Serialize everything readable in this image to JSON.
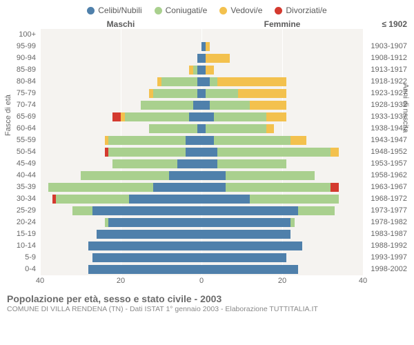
{
  "legend": [
    {
      "label": "Celibi/Nubili",
      "color": "#4f80ab"
    },
    {
      "label": "Coniugati/e",
      "color": "#a9d08e"
    },
    {
      "label": "Vedovi/e",
      "color": "#f3c14e"
    },
    {
      "label": "Divorziati/e",
      "color": "#d43a2f"
    }
  ],
  "header_male": "Maschi",
  "header_female": "Femmine",
  "header_right_top": "≤ 1902",
  "yaxis_title_left": "Fasce di età",
  "yaxis_title_right": "Anni di nascita",
  "x_ticks": [
    40,
    20,
    0,
    20,
    40
  ],
  "x_max": 40,
  "grid_color": "#ffffff",
  "plot_bg": "#f5f3f0",
  "centerline_color": "#999999",
  "rows": [
    {
      "age": "100+",
      "birth": "≤ 1902",
      "m": [
        0,
        0,
        0,
        0
      ],
      "f": [
        0,
        0,
        0,
        0
      ]
    },
    {
      "age": "95-99",
      "birth": "1903-1907",
      "m": [
        0,
        0,
        0,
        0
      ],
      "f": [
        1,
        0,
        1,
        0
      ]
    },
    {
      "age": "90-94",
      "birth": "1908-1912",
      "m": [
        1,
        0,
        0,
        0
      ],
      "f": [
        1,
        0,
        6,
        0
      ]
    },
    {
      "age": "85-89",
      "birth": "1913-1917",
      "m": [
        1,
        1,
        1,
        0
      ],
      "f": [
        1,
        0,
        2,
        0
      ]
    },
    {
      "age": "80-84",
      "birth": "1918-1922",
      "m": [
        1,
        9,
        1,
        0
      ],
      "f": [
        2,
        2,
        17,
        0
      ]
    },
    {
      "age": "75-79",
      "birth": "1923-1927",
      "m": [
        1,
        11,
        1,
        0
      ],
      "f": [
        1,
        8,
        12,
        0
      ]
    },
    {
      "age": "70-74",
      "birth": "1928-1932",
      "m": [
        2,
        13,
        0,
        0
      ],
      "f": [
        2,
        10,
        9,
        0
      ]
    },
    {
      "age": "65-69",
      "birth": "1933-1937",
      "m": [
        3,
        16,
        1,
        2
      ],
      "f": [
        3,
        13,
        5,
        0
      ]
    },
    {
      "age": "60-64",
      "birth": "1938-1942",
      "m": [
        1,
        12,
        0,
        0
      ],
      "f": [
        1,
        15,
        2,
        0
      ]
    },
    {
      "age": "55-59",
      "birth": "1943-1947",
      "m": [
        4,
        19,
        1,
        0
      ],
      "f": [
        3,
        19,
        4,
        0
      ]
    },
    {
      "age": "50-54",
      "birth": "1948-1952",
      "m": [
        4,
        19,
        0,
        1
      ],
      "f": [
        4,
        28,
        2,
        0
      ]
    },
    {
      "age": "45-49",
      "birth": "1953-1957",
      "m": [
        6,
        16,
        0,
        0
      ],
      "f": [
        4,
        17,
        0,
        0
      ]
    },
    {
      "age": "40-44",
      "birth": "1958-1962",
      "m": [
        8,
        22,
        0,
        0
      ],
      "f": [
        6,
        22,
        0,
        0
      ]
    },
    {
      "age": "35-39",
      "birth": "1963-1967",
      "m": [
        12,
        26,
        0,
        0
      ],
      "f": [
        6,
        26,
        0,
        2
      ]
    },
    {
      "age": "30-34",
      "birth": "1968-1972",
      "m": [
        18,
        18,
        0,
        1
      ],
      "f": [
        12,
        22,
        0,
        0
      ]
    },
    {
      "age": "25-29",
      "birth": "1973-1977",
      "m": [
        27,
        5,
        0,
        0
      ],
      "f": [
        24,
        9,
        0,
        0
      ]
    },
    {
      "age": "20-24",
      "birth": "1978-1982",
      "m": [
        23,
        1,
        0,
        0
      ],
      "f": [
        22,
        1,
        0,
        0
      ]
    },
    {
      "age": "15-19",
      "birth": "1983-1987",
      "m": [
        26,
        0,
        0,
        0
      ],
      "f": [
        22,
        0,
        0,
        0
      ]
    },
    {
      "age": "10-14",
      "birth": "1988-1992",
      "m": [
        28,
        0,
        0,
        0
      ],
      "f": [
        25,
        0,
        0,
        0
      ]
    },
    {
      "age": "5-9",
      "birth": "1993-1997",
      "m": [
        27,
        0,
        0,
        0
      ],
      "f": [
        21,
        0,
        0,
        0
      ]
    },
    {
      "age": "0-4",
      "birth": "1998-2002",
      "m": [
        28,
        0,
        0,
        0
      ],
      "f": [
        24,
        0,
        0,
        0
      ]
    }
  ],
  "caption_line1": "Popolazione per età, sesso e stato civile - 2003",
  "caption_line2": "COMUNE DI VILLA RENDENA (TN) - Dati ISTAT 1° gennaio 2003 - Elaborazione TUTTITALIA.IT"
}
